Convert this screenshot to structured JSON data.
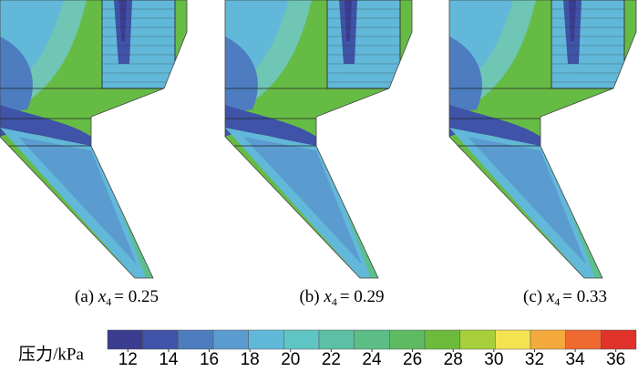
{
  "panels": [
    {
      "letter": "(a)",
      "symbol": "x",
      "subscript": "4",
      "relation": "=",
      "value": "0.25"
    },
    {
      "letter": "(b)",
      "symbol": "x",
      "subscript": "4",
      "relation": "=",
      "value": "0.29"
    },
    {
      "letter": "(c)",
      "symbol": "x",
      "subscript": "4",
      "relation": "=",
      "value": "0.33"
    }
  ],
  "colorbar": {
    "label": "压力/kPa",
    "lim": [
      11,
      37
    ],
    "ticks": [
      12,
      14,
      16,
      18,
      20,
      22,
      24,
      26,
      28,
      30,
      32,
      34,
      36
    ],
    "colors": [
      "#3a3c8f",
      "#3f53a8",
      "#4d7cc0",
      "#5a9bd0",
      "#62b8d8",
      "#5fc4c4",
      "#5dbfa3",
      "#5cbd86",
      "#5fbb62",
      "#6dbb3d",
      "#a6cf3a",
      "#f3e350",
      "#f4a93c",
      "#ee6a30",
      "#e0322a"
    ]
  }
}
